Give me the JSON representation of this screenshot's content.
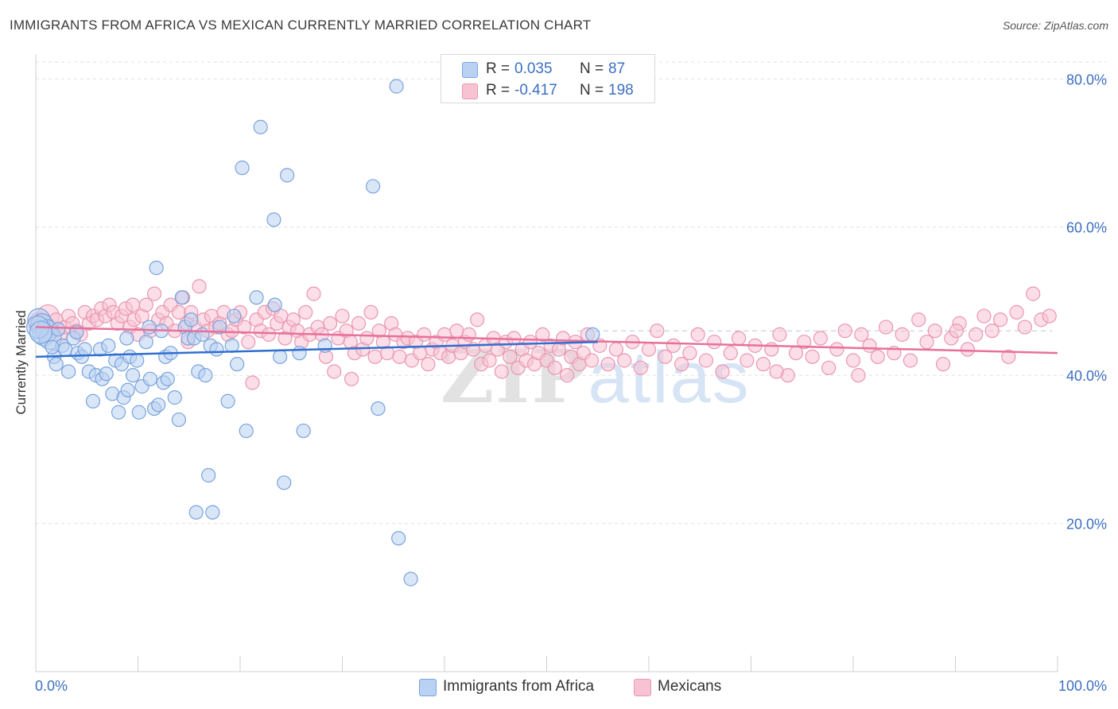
{
  "header": {
    "title": "IMMIGRANTS FROM AFRICA VS MEXICAN CURRENTLY MARRIED CORRELATION CHART",
    "source": "Source: ZipAtlas.com"
  },
  "legend": {
    "africa": {
      "r_label": "R =",
      "r_value": "0.035",
      "n_label": "N =",
      "n_value": "87"
    },
    "mexican": {
      "r_label": "R =",
      "r_value": "-0.417",
      "n_label": "N =",
      "n_value": "198"
    }
  },
  "colors": {
    "africa_fill": "#b9d1f2",
    "africa_stroke": "#7aa3dc",
    "africa_line": "#2f6fd0",
    "mexican_fill": "#f7c3d3",
    "mexican_stroke": "#ea97b0",
    "mexican_line": "#e8709a",
    "axis_text": "#3c6fc2",
    "grid": "#e0e0e0"
  },
  "watermark": {
    "zip": "ZIP",
    "atlas": "atlas"
  },
  "chart_data": {
    "type": "scatter",
    "title": "IMMIGRANTS FROM AFRICA VS MEXICAN CURRENTLY MARRIED CORRELATION CHART",
    "xlabel": "",
    "ylabel": "Currently Married",
    "xlim": [
      0,
      100
    ],
    "ylim": [
      0,
      84
    ],
    "x_tick_labels": [
      "0.0%",
      "100.0%"
    ],
    "y_ticks": [
      20,
      40,
      60,
      80
    ],
    "y_tick_labels": [
      "20.0%",
      "40.0%",
      "60.0%",
      "80.0%"
    ],
    "grid": true,
    "legend_position": "top-center",
    "reference_line_y": 46,
    "series": [
      {
        "name": "Immigrants from Africa",
        "trend": {
          "x": [
            0,
            55
          ],
          "y": [
            42.5,
            44.5
          ]
        },
        "points": [
          [
            0.3,
            47.5
          ],
          [
            0.6,
            46.8
          ],
          [
            0.8,
            45.5
          ],
          [
            1.1,
            46.0
          ],
          [
            1.4,
            45.0
          ],
          [
            1.8,
            42.5
          ],
          [
            2.0,
            41.5
          ],
          [
            2.6,
            44.0
          ],
          [
            2.9,
            43.5
          ],
          [
            3.2,
            40.5
          ],
          [
            3.7,
            45.0
          ],
          [
            4.1,
            43.0
          ],
          [
            4.5,
            42.5
          ],
          [
            4.8,
            43.5
          ],
          [
            5.2,
            40.5
          ],
          [
            5.6,
            36.5
          ],
          [
            5.9,
            40.0
          ],
          [
            6.3,
            43.5
          ],
          [
            6.5,
            39.5
          ],
          [
            7.1,
            44.0
          ],
          [
            7.5,
            37.5
          ],
          [
            7.8,
            42.0
          ],
          [
            8.1,
            35.0
          ],
          [
            8.4,
            41.5
          ],
          [
            8.6,
            37.0
          ],
          [
            8.9,
            45.0
          ],
          [
            9.2,
            42.5
          ],
          [
            9.5,
            40.0
          ],
          [
            9.9,
            42.0
          ],
          [
            10.1,
            35.0
          ],
          [
            10.4,
            38.5
          ],
          [
            10.8,
            44.5
          ],
          [
            11.1,
            46.5
          ],
          [
            11.2,
            39.5
          ],
          [
            11.6,
            35.5
          ],
          [
            11.8,
            54.5
          ],
          [
            12.0,
            36.0
          ],
          [
            12.3,
            46.0
          ],
          [
            12.5,
            39.0
          ],
          [
            12.7,
            42.5
          ],
          [
            12.9,
            39.5
          ],
          [
            13.2,
            43.0
          ],
          [
            13.6,
            37.0
          ],
          [
            14.0,
            34.0
          ],
          [
            14.3,
            50.5
          ],
          [
            14.6,
            46.5
          ],
          [
            14.9,
            45.0
          ],
          [
            15.2,
            47.5
          ],
          [
            15.5,
            45.0
          ],
          [
            15.7,
            21.5
          ],
          [
            15.9,
            40.5
          ],
          [
            16.3,
            45.5
          ],
          [
            16.6,
            40.0
          ],
          [
            16.9,
            26.5
          ],
          [
            17.1,
            44.0
          ],
          [
            17.3,
            21.5
          ],
          [
            17.7,
            43.5
          ],
          [
            18.0,
            46.5
          ],
          [
            18.8,
            36.5
          ],
          [
            19.2,
            44.0
          ],
          [
            19.4,
            48.0
          ],
          [
            19.7,
            41.5
          ],
          [
            20.2,
            68.0
          ],
          [
            20.6,
            32.5
          ],
          [
            21.6,
            50.5
          ],
          [
            22.0,
            73.5
          ],
          [
            23.3,
            61.0
          ],
          [
            23.4,
            49.5
          ],
          [
            23.9,
            42.5
          ],
          [
            24.3,
            25.5
          ],
          [
            24.6,
            67.0
          ],
          [
            25.8,
            43.0
          ],
          [
            26.2,
            32.5
          ],
          [
            28.3,
            44.0
          ],
          [
            33.0,
            65.5
          ],
          [
            33.5,
            35.5
          ],
          [
            35.3,
            79.0
          ],
          [
            35.5,
            18.0
          ],
          [
            36.7,
            12.5
          ],
          [
            54.5,
            45.5
          ],
          [
            0.2,
            46.5
          ],
          [
            0.5,
            45.8
          ],
          [
            1.6,
            43.8
          ],
          [
            2.2,
            46.2
          ],
          [
            4.0,
            45.8
          ],
          [
            6.9,
            40.2
          ],
          [
            9.0,
            38.0
          ]
        ]
      },
      {
        "name": "Mexicans",
        "trend": {
          "x": [
            0,
            100
          ],
          "y": [
            46.5,
            43.0
          ]
        },
        "points": [
          [
            0.4,
            47.0
          ],
          [
            0.8,
            46.5
          ],
          [
            1.2,
            48.0
          ],
          [
            1.6,
            46.0
          ],
          [
            2.0,
            47.5
          ],
          [
            2.4,
            45.5
          ],
          [
            2.8,
            46.5
          ],
          [
            3.2,
            48.0
          ],
          [
            3.6,
            47.0
          ],
          [
            4.0,
            46.0
          ],
          [
            4.4,
            45.5
          ],
          [
            4.8,
            48.5
          ],
          [
            5.2,
            47.0
          ],
          [
            5.6,
            48.0
          ],
          [
            6.0,
            47.5
          ],
          [
            6.4,
            49.0
          ],
          [
            6.8,
            48.0
          ],
          [
            7.2,
            49.5
          ],
          [
            7.6,
            48.5
          ],
          [
            8.0,
            47.0
          ],
          [
            8.4,
            48.0
          ],
          [
            8.8,
            49.0
          ],
          [
            9.2,
            46.5
          ],
          [
            9.6,
            47.5
          ],
          [
            10.0,
            45.5
          ],
          [
            10.4,
            48.0
          ],
          [
            10.8,
            49.5
          ],
          [
            11.2,
            46.0
          ],
          [
            11.6,
            51.0
          ],
          [
            12.0,
            47.5
          ],
          [
            12.4,
            48.5
          ],
          [
            12.8,
            47.0
          ],
          [
            13.2,
            49.5
          ],
          [
            13.6,
            46.0
          ],
          [
            14.0,
            48.5
          ],
          [
            14.4,
            50.5
          ],
          [
            14.8,
            47.0
          ],
          [
            15.2,
            48.5
          ],
          [
            15.6,
            46.5
          ],
          [
            16.0,
            52.0
          ],
          [
            16.4,
            47.5
          ],
          [
            16.8,
            46.0
          ],
          [
            17.2,
            48.0
          ],
          [
            17.6,
            46.5
          ],
          [
            18.0,
            47.0
          ],
          [
            18.4,
            48.5
          ],
          [
            18.8,
            45.5
          ],
          [
            19.2,
            46.0
          ],
          [
            19.6,
            47.5
          ],
          [
            20.0,
            48.5
          ],
          [
            20.4,
            46.5
          ],
          [
            20.8,
            44.5
          ],
          [
            21.2,
            39.0
          ],
          [
            21.6,
            47.5
          ],
          [
            22.0,
            46.0
          ],
          [
            22.4,
            48.5
          ],
          [
            22.8,
            45.5
          ],
          [
            23.2,
            49.0
          ],
          [
            23.6,
            47.0
          ],
          [
            24.0,
            48.0
          ],
          [
            24.4,
            45.0
          ],
          [
            24.8,
            46.5
          ],
          [
            25.2,
            47.5
          ],
          [
            25.6,
            46.0
          ],
          [
            26.0,
            44.5
          ],
          [
            26.4,
            48.5
          ],
          [
            26.8,
            45.5
          ],
          [
            27.2,
            51.0
          ],
          [
            27.6,
            46.5
          ],
          [
            28.0,
            45.5
          ],
          [
            28.4,
            42.5
          ],
          [
            28.8,
            47.0
          ],
          [
            29.2,
            40.5
          ],
          [
            29.6,
            45.0
          ],
          [
            30.0,
            48.0
          ],
          [
            30.4,
            46.0
          ],
          [
            30.8,
            44.5
          ],
          [
            31.2,
            43.0
          ],
          [
            31.6,
            47.0
          ],
          [
            32.0,
            43.5
          ],
          [
            32.4,
            45.0
          ],
          [
            32.8,
            48.5
          ],
          [
            33.2,
            42.5
          ],
          [
            33.6,
            46.0
          ],
          [
            34.0,
            44.5
          ],
          [
            34.4,
            43.0
          ],
          [
            34.8,
            47.0
          ],
          [
            35.2,
            45.5
          ],
          [
            35.6,
            42.5
          ],
          [
            36.0,
            44.5
          ],
          [
            36.4,
            45.0
          ],
          [
            36.8,
            42.0
          ],
          [
            37.2,
            44.5
          ],
          [
            37.6,
            43.0
          ],
          [
            38.0,
            45.5
          ],
          [
            38.4,
            41.5
          ],
          [
            38.8,
            43.5
          ],
          [
            39.2,
            44.5
          ],
          [
            39.6,
            43.0
          ],
          [
            40.0,
            45.5
          ],
          [
            40.4,
            42.5
          ],
          [
            40.8,
            44.0
          ],
          [
            41.2,
            46.0
          ],
          [
            41.6,
            43.0
          ],
          [
            42.0,
            44.5
          ],
          [
            42.4,
            45.5
          ],
          [
            42.8,
            43.5
          ],
          [
            43.2,
            47.5
          ],
          [
            43.6,
            41.5
          ],
          [
            44.0,
            44.0
          ],
          [
            44.4,
            42.0
          ],
          [
            44.8,
            45.0
          ],
          [
            45.2,
            43.5
          ],
          [
            45.6,
            40.5
          ],
          [
            46.0,
            44.5
          ],
          [
            46.4,
            42.5
          ],
          [
            46.8,
            45.0
          ],
          [
            47.2,
            41.0
          ],
          [
            47.6,
            43.5
          ],
          [
            48.0,
            42.0
          ],
          [
            48.4,
            44.5
          ],
          [
            48.8,
            41.5
          ],
          [
            49.2,
            43.0
          ],
          [
            49.6,
            45.5
          ],
          [
            50.0,
            42.0
          ],
          [
            50.4,
            44.0
          ],
          [
            50.8,
            41.0
          ],
          [
            51.2,
            43.5
          ],
          [
            51.6,
            45.0
          ],
          [
            52.0,
            40.0
          ],
          [
            52.4,
            42.5
          ],
          [
            52.8,
            44.5
          ],
          [
            53.2,
            41.5
          ],
          [
            53.6,
            43.0
          ],
          [
            54.0,
            45.5
          ],
          [
            54.4,
            42.0
          ],
          [
            55.2,
            44.0
          ],
          [
            56.0,
            41.5
          ],
          [
            56.8,
            43.5
          ],
          [
            57.6,
            42.0
          ],
          [
            58.4,
            44.5
          ],
          [
            59.2,
            41.0
          ],
          [
            60.0,
            43.5
          ],
          [
            60.8,
            46.0
          ],
          [
            61.6,
            42.5
          ],
          [
            62.4,
            44.0
          ],
          [
            63.2,
            41.5
          ],
          [
            64.0,
            43.0
          ],
          [
            64.8,
            45.5
          ],
          [
            65.6,
            42.0
          ],
          [
            66.4,
            44.5
          ],
          [
            67.2,
            40.5
          ],
          [
            68.0,
            43.0
          ],
          [
            68.8,
            45.0
          ],
          [
            69.6,
            42.0
          ],
          [
            70.4,
            44.0
          ],
          [
            71.2,
            41.5
          ],
          [
            72.0,
            43.5
          ],
          [
            72.8,
            45.5
          ],
          [
            73.6,
            40.0
          ],
          [
            74.4,
            43.0
          ],
          [
            75.2,
            44.5
          ],
          [
            76.0,
            42.5
          ],
          [
            76.8,
            45.0
          ],
          [
            77.6,
            41.0
          ],
          [
            78.4,
            43.5
          ],
          [
            79.2,
            46.0
          ],
          [
            80.0,
            42.0
          ],
          [
            80.8,
            45.5
          ],
          [
            81.6,
            44.0
          ],
          [
            82.4,
            42.5
          ],
          [
            83.2,
            46.5
          ],
          [
            84.0,
            43.0
          ],
          [
            84.8,
            45.5
          ],
          [
            85.6,
            42.0
          ],
          [
            86.4,
            47.5
          ],
          [
            87.2,
            44.5
          ],
          [
            88.0,
            46.0
          ],
          [
            88.8,
            41.5
          ],
          [
            89.6,
            45.0
          ],
          [
            90.4,
            47.0
          ],
          [
            91.2,
            43.5
          ],
          [
            92.0,
            45.5
          ],
          [
            92.8,
            48.0
          ],
          [
            93.6,
            46.0
          ],
          [
            94.4,
            47.5
          ],
          [
            95.2,
            42.5
          ],
          [
            96.0,
            48.5
          ],
          [
            96.8,
            46.5
          ],
          [
            97.6,
            51.0
          ],
          [
            98.4,
            47.5
          ],
          [
            99.2,
            48.0
          ],
          [
            9.5,
            49.5
          ],
          [
            14.9,
            44.5
          ],
          [
            30.9,
            39.5
          ],
          [
            72.5,
            40.5
          ],
          [
            80.5,
            40.0
          ],
          [
            90.1,
            46.0
          ]
        ]
      }
    ]
  }
}
